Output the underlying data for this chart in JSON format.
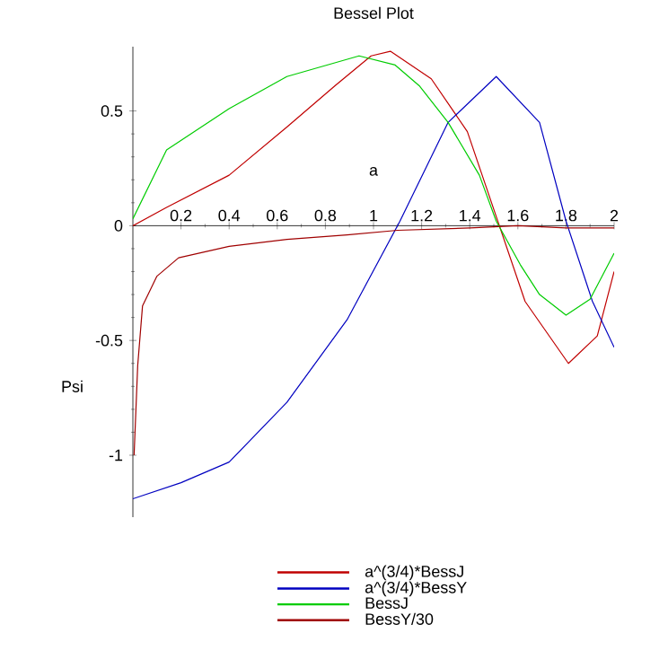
{
  "chart_data": {
    "type": "line",
    "title": "Bessel Plot",
    "xlabel": "a",
    "ylabel": "Psi",
    "xlim": [
      0,
      2
    ],
    "ylim": [
      -1.27,
      0.78
    ],
    "xticks": [
      0.2,
      0.4,
      0.6,
      0.8,
      1,
      1.2,
      1.4,
      1.6,
      1.8,
      2
    ],
    "yticks": [
      -1,
      -0.5,
      0,
      0.5
    ],
    "legend": "bottom",
    "series": [
      {
        "name": "a^(3/4)*BessJ",
        "color": "#c00000",
        "x": [
          0,
          0.14,
          0.4,
          0.64,
          0.84,
          0.99,
          1.07,
          1.24,
          1.39,
          1.51,
          1.63,
          1.81,
          1.93,
          2.0
        ],
        "values": [
          0,
          0.08,
          0.22,
          0.43,
          0.61,
          0.74,
          0.76,
          0.64,
          0.41,
          0.04,
          -0.33,
          -0.6,
          -0.48,
          -0.2
        ]
      },
      {
        "name": "a^(3/4)*BessY",
        "color": "#0000c0",
        "x": [
          0,
          0.2,
          0.4,
          0.64,
          0.89,
          1.11,
          1.31,
          1.51,
          1.69,
          1.8,
          1.91,
          2.0
        ],
        "values": [
          -1.19,
          -1.12,
          -1.03,
          -0.77,
          -0.41,
          0.02,
          0.45,
          0.65,
          0.45,
          0.02,
          -0.33,
          -0.53
        ]
      },
      {
        "name": "BessJ",
        "color": "#00cc00",
        "x": [
          0,
          0.14,
          0.4,
          0.64,
          0.94,
          1.09,
          1.19,
          1.31,
          1.44,
          1.51,
          1.61,
          1.69,
          1.8,
          1.9,
          2.0
        ],
        "values": [
          0.03,
          0.33,
          0.51,
          0.65,
          0.74,
          0.7,
          0.61,
          0.45,
          0.22,
          0.02,
          -0.17,
          -0.3,
          -0.39,
          -0.32,
          -0.12
        ]
      },
      {
        "name": "BessY/30",
        "color": "#a00000",
        "x": [
          0.005,
          0.02,
          0.04,
          0.1,
          0.19,
          0.4,
          0.64,
          0.89,
          1.1,
          1.4,
          1.6,
          1.8,
          2.0
        ],
        "values": [
          -1.0,
          -0.61,
          -0.35,
          -0.22,
          -0.14,
          -0.09,
          -0.06,
          -0.04,
          -0.02,
          -0.01,
          0,
          -0.01,
          -0.01
        ]
      }
    ]
  }
}
